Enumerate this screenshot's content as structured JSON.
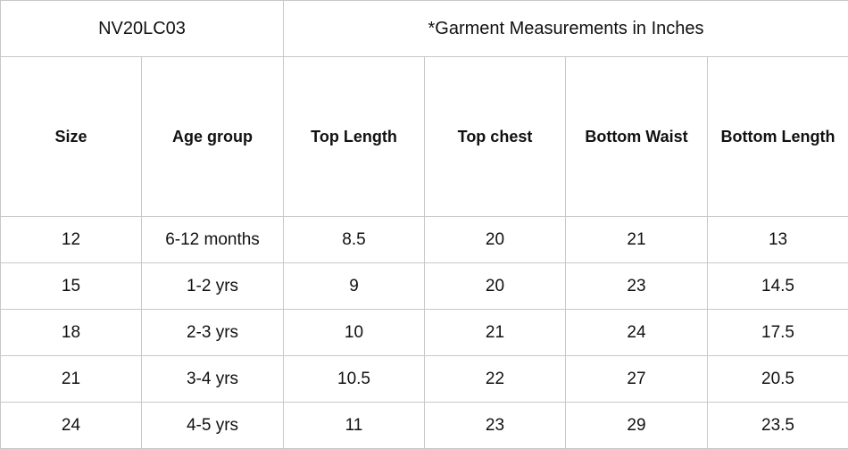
{
  "header": {
    "code": "NV20LC03",
    "title": "*Garment Measurements in Inches"
  },
  "table": {
    "columns": [
      "Size",
      "Age group",
      "Top Length",
      "Top chest",
      "Bottom Waist",
      "Bottom Length"
    ],
    "rows": [
      [
        12,
        "6-12 months",
        8.5,
        20,
        21,
        13
      ],
      [
        15,
        "1-2 yrs",
        9,
        20,
        23,
        14.5
      ],
      [
        18,
        "2-3 yrs",
        10,
        21,
        24,
        17.5
      ],
      [
        21,
        "3-4 yrs",
        10.5,
        22,
        27,
        20.5
      ],
      [
        24,
        "4-5 yrs",
        11,
        23,
        29,
        23.5
      ]
    ]
  }
}
